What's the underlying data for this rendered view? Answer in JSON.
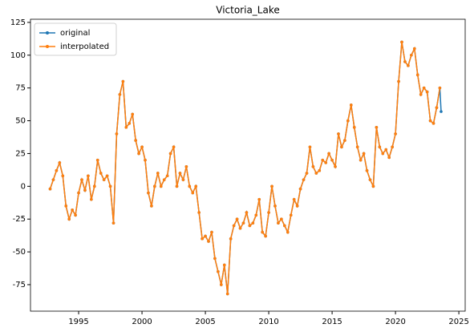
{
  "chart_data": {
    "type": "line",
    "title": "Victoria_Lake",
    "x": [
      1992.75,
      1993,
      1993.25,
      1993.5,
      1993.75,
      1994,
      1994.25,
      1994.5,
      1994.75,
      1995,
      1995.25,
      1995.5,
      1995.75,
      1996,
      1996.25,
      1996.5,
      1996.75,
      1997,
      1997.25,
      1997.5,
      1997.75,
      1998,
      1998.25,
      1998.5,
      1998.75,
      1999,
      1999.25,
      1999.5,
      1999.75,
      2000,
      2000.25,
      2000.5,
      2000.75,
      2001,
      2001.25,
      2001.5,
      2001.75,
      2002,
      2002.25,
      2002.5,
      2002.75,
      2003,
      2003.25,
      2003.5,
      2003.75,
      2004,
      2004.25,
      2004.5,
      2004.75,
      2005,
      2005.25,
      2005.5,
      2005.75,
      2006,
      2006.25,
      2006.5,
      2006.75,
      2007,
      2007.25,
      2007.5,
      2007.75,
      2008,
      2008.25,
      2008.5,
      2008.75,
      2009,
      2009.25,
      2009.5,
      2009.75,
      2010,
      2010.25,
      2010.5,
      2010.75,
      2011,
      2011.25,
      2011.5,
      2011.75,
      2012,
      2012.25,
      2012.5,
      2012.75,
      2013,
      2013.25,
      2013.5,
      2013.75,
      2014,
      2014.25,
      2014.5,
      2014.75,
      2015,
      2015.25,
      2015.5,
      2015.75,
      2016,
      2016.25,
      2016.5,
      2016.75,
      2017,
      2017.25,
      2017.5,
      2017.75,
      2018,
      2018.25,
      2018.5,
      2018.75,
      2019,
      2019.25,
      2019.5,
      2019.75,
      2020,
      2020.25,
      2020.5,
      2020.75,
      2021,
      2021.25,
      2021.5,
      2021.75,
      2022,
      2022.25,
      2022.5,
      2022.75,
      2023,
      2023.25,
      2023.5,
      2023.6
    ],
    "series": [
      {
        "name": "original",
        "color": "#1f77b4",
        "values": [
          -2,
          5,
          12,
          18,
          8,
          -15,
          -25,
          -18,
          -22,
          -5,
          5,
          -3,
          8,
          -10,
          0,
          20,
          10,
          5,
          8,
          0,
          -28,
          40,
          70,
          80,
          45,
          48,
          55,
          35,
          25,
          30,
          20,
          -5,
          -15,
          0,
          10,
          0,
          5,
          8,
          25,
          30,
          0,
          10,
          5,
          15,
          0,
          -5,
          0,
          -20,
          -40,
          -38,
          -42,
          -35,
          -55,
          -65,
          -75,
          -60,
          -82,
          -40,
          -30,
          -25,
          -32,
          -28,
          -20,
          -30,
          -28,
          -22,
          -10,
          -35,
          -38,
          -20,
          0,
          -15,
          -28,
          -25,
          -30,
          -35,
          -22,
          -10,
          -15,
          -2,
          5,
          10,
          30,
          15,
          10,
          12,
          20,
          18,
          25,
          20,
          15,
          40,
          30,
          35,
          50,
          62,
          45,
          30,
          20,
          25,
          12,
          5,
          0,
          45,
          30,
          25,
          28,
          22,
          30,
          40,
          80,
          110,
          95,
          92,
          100,
          105,
          85,
          70,
          75,
          72,
          50,
          48,
          60,
          75,
          57
        ]
      },
      {
        "name": "interpolated",
        "color": "#ff7f0e",
        "values": [
          -2,
          5,
          12,
          18,
          8,
          -15,
          -25,
          -18,
          -22,
          -5,
          5,
          -3,
          8,
          -10,
          0,
          20,
          10,
          5,
          8,
          0,
          -28,
          40,
          70,
          80,
          45,
          48,
          55,
          35,
          25,
          30,
          20,
          -5,
          -15,
          0,
          10,
          0,
          5,
          8,
          25,
          30,
          0,
          10,
          5,
          15,
          0,
          -5,
          0,
          -20,
          -40,
          -38,
          -42,
          -35,
          -55,
          -65,
          -75,
          -60,
          -82,
          -40,
          -30,
          -25,
          -32,
          -28,
          -20,
          -30,
          -28,
          -22,
          -10,
          -35,
          -38,
          -20,
          0,
          -15,
          -28,
          -25,
          -30,
          -35,
          -22,
          -10,
          -15,
          -2,
          5,
          10,
          30,
          15,
          10,
          12,
          20,
          18,
          25,
          20,
          15,
          40,
          30,
          35,
          50,
          62,
          45,
          30,
          20,
          25,
          12,
          5,
          0,
          45,
          30,
          25,
          28,
          22,
          30,
          40,
          80,
          110,
          95,
          92,
          100,
          105,
          85,
          70,
          75,
          72,
          50,
          48,
          60,
          75,
          null
        ]
      }
    ],
    "xlim": [
      1991.2,
      2025.5
    ],
    "xticks": [
      1995,
      2000,
      2005,
      2010,
      2015,
      2020,
      2025
    ],
    "ylim": [
      -95.2,
      127.4
    ],
    "yticks": [
      -75,
      -50,
      -25,
      0,
      25,
      50,
      75,
      100,
      125
    ],
    "grid": false,
    "legend": "upper left"
  }
}
